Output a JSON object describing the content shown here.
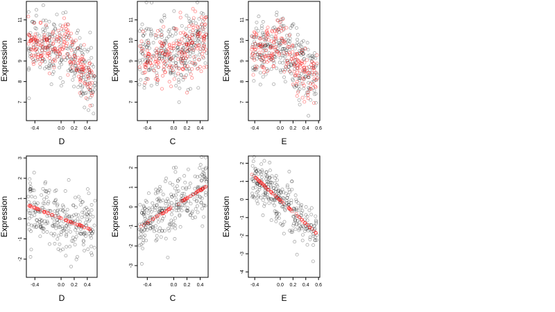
{
  "chart_data": [
    {
      "type": "scatter",
      "xlabel": "D",
      "ylabel": "Expression",
      "xlim": [
        -0.53,
        0.55
      ],
      "ylim": [
        6.1,
        11.9
      ],
      "xticks": [
        -0.4,
        0.0,
        0.2,
        0.4
      ],
      "xtick_labels": [
        "-0.4",
        "0.0",
        "0.2",
        "0.4"
      ],
      "yticks": [
        7,
        8,
        9,
        10,
        11
      ],
      "ytick_labels": [
        "7",
        "8",
        "9",
        "10",
        "11"
      ],
      "grid": false,
      "series": [
        {
          "color": "#000000",
          "marker": "open-circle",
          "n": 260,
          "x_range": [
            -0.5,
            0.52
          ],
          "trend": [
            [
              -0.5,
              9.8
            ],
            [
              -0.2,
              9.7
            ],
            [
              0.0,
              9.6
            ],
            [
              0.05,
              10.1
            ],
            [
              0.2,
              9.1
            ],
            [
              0.4,
              8.3
            ],
            [
              0.52,
              8.1
            ]
          ],
          "spread": 0.75
        },
        {
          "color": "#ff0000",
          "marker": "open-circle",
          "n": 200,
          "x_range": [
            -0.5,
            0.5
          ],
          "trend": [
            [
              -0.5,
              9.8
            ],
            [
              -0.2,
              9.6
            ],
            [
              0.0,
              9.6
            ],
            [
              0.05,
              10.2
            ],
            [
              0.2,
              9.0
            ],
            [
              0.4,
              8.2
            ],
            [
              0.5,
              8.0
            ]
          ],
          "spread": 0.5
        }
      ]
    },
    {
      "type": "scatter",
      "xlabel": "C",
      "ylabel": "Expression",
      "xlim": [
        -0.55,
        0.52
      ],
      "ylim": [
        6.1,
        11.9
      ],
      "xticks": [
        -0.4,
        0.0,
        0.2,
        0.4
      ],
      "xtick_labels": [
        "-0.4",
        "0.0",
        "0.2",
        "0.4"
      ],
      "yticks": [
        7,
        8,
        9,
        10,
        11
      ],
      "ytick_labels": [
        "7",
        "8",
        "9",
        "10",
        "11"
      ],
      "grid": false,
      "series": [
        {
          "color": "#000000",
          "marker": "open-circle",
          "n": 280,
          "x_range": [
            -0.52,
            0.5
          ],
          "trend": [
            [
              -0.5,
              9.4
            ],
            [
              -0.3,
              9.1
            ],
            [
              0.0,
              9.3
            ],
            [
              0.2,
              9.6
            ],
            [
              0.35,
              9.9
            ],
            [
              0.5,
              10.2
            ]
          ],
          "spread": 0.85
        },
        {
          "color": "#ff0000",
          "marker": "open-circle",
          "n": 200,
          "x_range": [
            -0.52,
            0.5
          ],
          "trend": [
            [
              -0.5,
              9.4
            ],
            [
              -0.3,
              9.0
            ],
            [
              0.0,
              9.3
            ],
            [
              0.2,
              9.6
            ],
            [
              0.35,
              9.9
            ],
            [
              0.5,
              10.3
            ]
          ],
          "spread": 0.75
        }
      ]
    },
    {
      "type": "scatter",
      "xlabel": "E",
      "ylabel": "Expression",
      "xlim": [
        -0.5,
        0.62
      ],
      "ylim": [
        6.1,
        11.9
      ],
      "xticks": [
        -0.4,
        0.0,
        0.2,
        0.4,
        0.6
      ],
      "xtick_labels": [
        "-0.4",
        "0.0",
        "0.2",
        "0.4",
        "0.6"
      ],
      "yticks": [
        7,
        8,
        9,
        10,
        11
      ],
      "ytick_labels": [
        "7",
        "8",
        "9",
        "10",
        "11"
      ],
      "grid": false,
      "series": [
        {
          "color": "#000000",
          "marker": "open-circle",
          "n": 280,
          "x_range": [
            -0.45,
            0.58
          ],
          "trend": [
            [
              -0.45,
              9.5
            ],
            [
              -0.1,
              9.4
            ],
            [
              0.0,
              9.8
            ],
            [
              0.2,
              8.9
            ],
            [
              0.4,
              8.5
            ],
            [
              0.58,
              8.2
            ]
          ],
          "spread": 0.8
        },
        {
          "color": "#ff0000",
          "marker": "open-circle",
          "n": 200,
          "x_range": [
            -0.45,
            0.58
          ],
          "trend": [
            [
              -0.45,
              9.6
            ],
            [
              -0.1,
              9.5
            ],
            [
              0.0,
              10.0
            ],
            [
              0.2,
              8.9
            ],
            [
              0.4,
              8.4
            ],
            [
              0.58,
              8.1
            ]
          ],
          "spread": 0.55
        }
      ]
    },
    {
      "type": "scatter",
      "xlabel": "D",
      "ylabel": "Expression",
      "xlim": [
        -0.53,
        0.55
      ],
      "ylim": [
        -2.9,
        3.1
      ],
      "xticks": [
        -0.4,
        0.0,
        0.2,
        0.4
      ],
      "xtick_labels": [
        "-0.4",
        "0.0",
        "0.2",
        "0.4"
      ],
      "yticks": [
        -2,
        -1,
        0,
        1,
        2,
        3
      ],
      "ytick_labels": [
        "-2",
        "-1",
        "0",
        "1",
        "2",
        "3"
      ],
      "grid": false,
      "series": [
        {
          "color": "#000000",
          "marker": "open-circle",
          "n": 260,
          "x_range": [
            -0.5,
            0.52
          ],
          "trend": [
            [
              -0.5,
              0.65
            ],
            [
              0.5,
              -0.6
            ]
          ],
          "spread": 0.75
        },
        {
          "color": "#ff0000",
          "marker": "open-circle",
          "n": 60,
          "x_range": [
            -0.5,
            0.45
          ],
          "trend": [
            [
              -0.5,
              0.65
            ],
            [
              0.45,
              -0.55
            ]
          ],
          "spread": 0.02
        }
      ]
    },
    {
      "type": "scatter",
      "xlabel": "C",
      "ylabel": "Expression",
      "xlim": [
        -0.55,
        0.52
      ],
      "ylim": [
        -3.6,
        2.6
      ],
      "xticks": [
        -0.4,
        0.0,
        0.2,
        0.4
      ],
      "xtick_labels": [
        "-0.4",
        "0.0",
        "0.2",
        "0.4"
      ],
      "yticks": [
        -3,
        -2,
        -1,
        0,
        1,
        2
      ],
      "ytick_labels": [
        "-3",
        "-2",
        "-1",
        "0",
        "1",
        "2"
      ],
      "grid": false,
      "series": [
        {
          "color": "#000000",
          "marker": "open-circle",
          "n": 280,
          "x_range": [
            -0.52,
            0.5
          ],
          "trend": [
            [
              -0.5,
              -1.0
            ],
            [
              0.5,
              1.0
            ]
          ],
          "spread": 0.8
        },
        {
          "color": "#ff0000",
          "marker": "open-circle",
          "n": 60,
          "x_range": [
            -0.52,
            0.5
          ],
          "trend": [
            [
              -0.52,
              -1.05
            ],
            [
              0.5,
              1.05
            ]
          ],
          "spread": 0.02
        }
      ]
    },
    {
      "type": "scatter",
      "xlabel": "E",
      "ylabel": "Expression",
      "xlim": [
        -0.5,
        0.62
      ],
      "ylim": [
        -4.3,
        2.4
      ],
      "xticks": [
        -0.4,
        0.0,
        0.2,
        0.4,
        0.6
      ],
      "xtick_labels": [
        "-0.4",
        "0.0",
        "0.2",
        "0.4",
        "0.6"
      ],
      "yticks": [
        -4,
        -3,
        -2,
        -1,
        0,
        1,
        2
      ],
      "ytick_labels": [
        "-4",
        "-3",
        "-2",
        "-1",
        "0",
        "1",
        "2"
      ],
      "grid": false,
      "series": [
        {
          "color": "#000000",
          "marker": "open-circle",
          "n": 280,
          "x_range": [
            -0.45,
            0.58
          ],
          "trend": [
            [
              -0.45,
              1.4
            ],
            [
              0.0,
              -0.05
            ],
            [
              0.58,
              -1.9
            ]
          ],
          "spread": 0.65
        },
        {
          "color": "#ff0000",
          "marker": "open-circle",
          "n": 70,
          "x_range": [
            -0.45,
            0.58
          ],
          "trend": [
            [
              -0.45,
              1.4
            ],
            [
              0.58,
              -1.9
            ]
          ],
          "spread": 0.02
        }
      ]
    }
  ]
}
